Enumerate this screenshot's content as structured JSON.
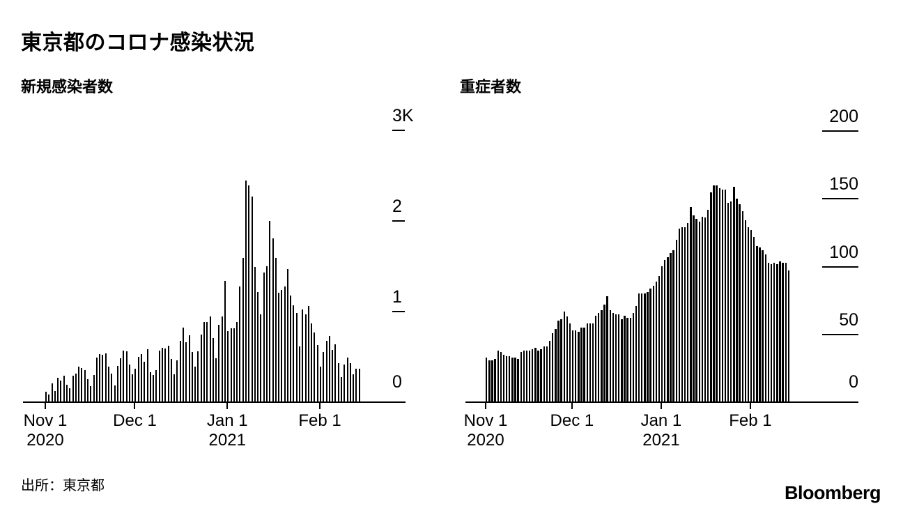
{
  "page": {
    "title": "東京都のコロナ感染状況",
    "source": "出所：東京都",
    "logo": "Bloomberg"
  },
  "colors": {
    "bar": "#000000",
    "background": "#ffffff",
    "text": "#000000"
  },
  "chart_data": [
    {
      "type": "bar",
      "title": "新規感染者数",
      "xlabel": "",
      "ylabel": "",
      "x_start": "2020-11-01",
      "x_end": "2021-02-14",
      "x_interval": "daily",
      "ylim": [
        0,
        3000
      ],
      "y_tick_values": [
        3000,
        2000,
        1000,
        0
      ],
      "y_tick_labels": [
        "3K",
        "2",
        "1",
        "0"
      ],
      "x_tick_day_offsets": [
        0,
        30,
        61,
        92
      ],
      "x_tick_labels": [
        "Nov 1\n2020",
        "Dec 1",
        "Jan 1\n2021",
        "Feb 1"
      ],
      "grid": false,
      "legend": "none",
      "values": [
        116,
        87,
        209,
        122,
        269,
        242,
        294,
        189,
        157,
        293,
        317,
        393,
        374,
        352,
        255,
        180,
        298,
        493,
        534,
        522,
        539,
        391,
        314,
        186,
        401,
        481,
        570,
        561,
        418,
        311,
        372,
        500,
        533,
        449,
        584,
        327,
        299,
        352,
        572,
        602,
        595,
        621,
        480,
        305,
        460,
        678,
        822,
        664,
        736,
        556,
        392,
        563,
        748,
        888,
        884,
        949,
        708,
        481,
        856,
        944,
        1337,
        783,
        814,
        816,
        884,
        1278,
        1591,
        2447,
        2392,
        2268,
        1494,
        1219,
        970,
        1433,
        1502,
        2001,
        1809,
        1592,
        1204,
        1240,
        1274,
        1471,
        1175,
        1070,
        986,
        618,
        1026,
        973,
        1064,
        868,
        769,
        633,
        393,
        556,
        676,
        734,
        577,
        639,
        429,
        276,
        412,
        491,
        434,
        307,
        369,
        371
      ]
    },
    {
      "type": "bar",
      "title": "重症者数",
      "xlabel": "",
      "ylabel": "",
      "x_start": "2020-11-01",
      "x_end": "2021-02-14",
      "x_interval": "daily",
      "ylim": [
        0,
        200
      ],
      "y_tick_values": [
        200,
        150,
        100,
        50,
        0
      ],
      "y_tick_labels": [
        "200",
        "150",
        "100",
        "50",
        "0"
      ],
      "x_tick_day_offsets": [
        0,
        30,
        61,
        92
      ],
      "x_tick_labels": [
        "Nov 1\n2020",
        "Dec 1",
        "Jan 1\n2021",
        "Feb 1"
      ],
      "grid": false,
      "legend": "none",
      "values": [
        33,
        31,
        31,
        32,
        38,
        37,
        35,
        34,
        34,
        33,
        33,
        32,
        37,
        38,
        38,
        38,
        39,
        40,
        38,
        39,
        41,
        41,
        45,
        51,
        54,
        60,
        61,
        67,
        63,
        58,
        53,
        53,
        52,
        55,
        55,
        58,
        58,
        58,
        64,
        66,
        68,
        72,
        78,
        68,
        66,
        65,
        65,
        61,
        64,
        62,
        62,
        66,
        71,
        80,
        80,
        80,
        81,
        84,
        86,
        89,
        93,
        100,
        105,
        107,
        110,
        112,
        120,
        128,
        129,
        129,
        132,
        144,
        138,
        135,
        133,
        137,
        136,
        142,
        155,
        160,
        160,
        158,
        157,
        157,
        147,
        148,
        159,
        150,
        146,
        141,
        134,
        129,
        127,
        122,
        115,
        114,
        112,
        109,
        103,
        102,
        103,
        102,
        104,
        103,
        103,
        97
      ]
    }
  ]
}
